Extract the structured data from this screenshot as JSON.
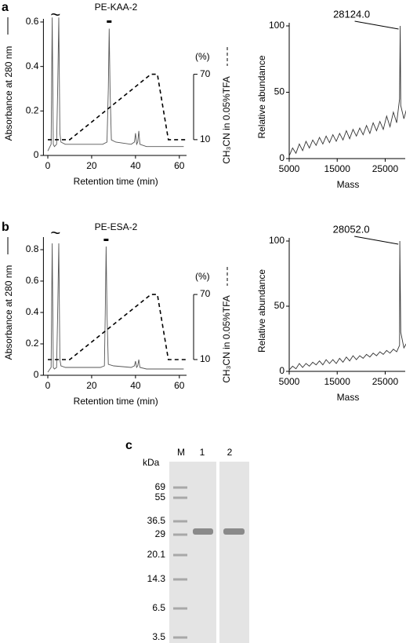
{
  "chart_data": [
    {
      "type": "line",
      "panel": "a",
      "title": "PE-KAA-2",
      "xlabel": "Retention time (min)",
      "ylabel": "Absorbance at 280 nm",
      "y2label": "CH₃CN in 0.05%TFA",
      "y2unit": "(%)",
      "break_mark": "~",
      "xlim": [
        -2,
        64
      ],
      "xticks": [
        0,
        20,
        40,
        60
      ],
      "ylim": [
        0,
        0.6
      ],
      "yticks": [
        0,
        0.2,
        0.4,
        0.6
      ],
      "y2lim": [
        -4.5,
        118
      ],
      "y2ticks": [
        10,
        70
      ],
      "series": [
        {
          "color": "#555555",
          "x": [
            0,
            1.5,
            2,
            2.5,
            3,
            4,
            4.5,
            5,
            5.5,
            6,
            8,
            15,
            25,
            27,
            27.6,
            28,
            28.4,
            29,
            31,
            38,
            39.5,
            40,
            40.5,
            41,
            41.5,
            42,
            45,
            55,
            62
          ],
          "values": [
            0.02,
            0.05,
            0.62,
            0.05,
            0.04,
            0.05,
            0.3,
            0.62,
            0.1,
            0.06,
            0.05,
            0.05,
            0.05,
            0.06,
            0.3,
            0.57,
            0.3,
            0.07,
            0.06,
            0.05,
            0.06,
            0.1,
            0.05,
            0.06,
            0.11,
            0.05,
            0.04,
            0.04,
            0.04
          ]
        },
        {
          "color": "#000000",
          "dash": true,
          "axis": "y2",
          "x": [
            0,
            10,
            47,
            50,
            55,
            63
          ],
          "values": [
            10,
            10,
            70,
            70,
            10,
            10
          ]
        }
      ]
    },
    {
      "type": "line",
      "ylabel": "Relative abundance",
      "xlabel": "Mass",
      "annotation": "28124.0",
      "xlim": [
        5000,
        29500
      ],
      "xticks": [
        5000,
        15000,
        25000
      ],
      "ylim": [
        0,
        100
      ],
      "yticks": [
        0,
        50,
        100
      ],
      "series": [
        {
          "color": "#333333",
          "x": [
            5000,
            5700,
            6400,
            7100,
            7800,
            8500,
            9200,
            9900,
            10600,
            11300,
            12000,
            12700,
            13400,
            14100,
            14800,
            15500,
            16200,
            16900,
            17600,
            18300,
            19000,
            19700,
            20400,
            21100,
            21800,
            22500,
            23200,
            23900,
            24600,
            25300,
            26000,
            26700,
            27400,
            28000,
            28124,
            28250,
            28900,
            29500
          ],
          "values": [
            2,
            8,
            4,
            11,
            6,
            13,
            8,
            14,
            10,
            16,
            11,
            17,
            12,
            18,
            13,
            19,
            14,
            21,
            15,
            22,
            17,
            23,
            18,
            25,
            19,
            27,
            21,
            28,
            22,
            32,
            24,
            35,
            27,
            45,
            100,
            40,
            30,
            38
          ]
        }
      ]
    },
    {
      "type": "line",
      "panel": "b",
      "title": "PE-ESA-2",
      "xlabel": "Retention time (min)",
      "ylabel": "Absorbance at 280 nm",
      "y2label": "CH₃CN in 0.05%TFA",
      "y2unit": "(%)",
      "break_mark": "~",
      "xlim": [
        -2,
        64
      ],
      "xticks": [
        0,
        20,
        40,
        60
      ],
      "ylim": [
        0,
        0.86
      ],
      "yticks": [
        0,
        0.2,
        0.4,
        0.6,
        0.8
      ],
      "y2lim": [
        -4.5,
        120
      ],
      "y2ticks": [
        10,
        70
      ],
      "series": [
        {
          "color": "#555555",
          "x": [
            0,
            1.5,
            2,
            2.5,
            3,
            4,
            4.5,
            5,
            5.5,
            6,
            8,
            15,
            24,
            25.8,
            26.2,
            26.6,
            27,
            27.6,
            30,
            38,
            39.5,
            40,
            40.5,
            41,
            41.5,
            42,
            45,
            55,
            62
          ],
          "values": [
            0.02,
            0.05,
            0.84,
            0.05,
            0.04,
            0.05,
            0.4,
            0.84,
            0.1,
            0.06,
            0.05,
            0.05,
            0.05,
            0.06,
            0.4,
            0.82,
            0.4,
            0.07,
            0.06,
            0.05,
            0.06,
            0.09,
            0.05,
            0.06,
            0.1,
            0.05,
            0.04,
            0.04,
            0.04
          ]
        },
        {
          "color": "#000000",
          "dash": true,
          "axis": "y2",
          "x": [
            0,
            10,
            47,
            50,
            55,
            63
          ],
          "values": [
            10,
            10,
            70,
            70,
            10,
            10
          ]
        }
      ]
    },
    {
      "type": "line",
      "ylabel": "Relative abundance",
      "xlabel": "Mass",
      "annotation": "28052.0",
      "xlim": [
        5000,
        29500
      ],
      "xticks": [
        5000,
        15000,
        25000
      ],
      "ylim": [
        0,
        100
      ],
      "yticks": [
        0,
        50,
        100
      ],
      "series": [
        {
          "color": "#333333",
          "x": [
            5000,
            5700,
            6400,
            7100,
            7800,
            8500,
            9200,
            9900,
            10600,
            11300,
            12000,
            12700,
            13400,
            14100,
            14800,
            15500,
            16200,
            16900,
            17600,
            18300,
            19000,
            19700,
            20400,
            21100,
            21800,
            22500,
            23200,
            23900,
            24600,
            25300,
            26000,
            26700,
            27400,
            28000,
            28052,
            28250,
            28900,
            29500
          ],
          "values": [
            1,
            4,
            2,
            6,
            3,
            6,
            4,
            7,
            5,
            8,
            5,
            9,
            6,
            9,
            6,
            10,
            7,
            11,
            8,
            12,
            9,
            12,
            10,
            13,
            11,
            14,
            12,
            15,
            13,
            16,
            14,
            17,
            15,
            20,
            100,
            30,
            18,
            22
          ]
        }
      ]
    }
  ],
  "gel": {
    "panel": "c",
    "unit": "kDa",
    "lanes": [
      "M",
      "1",
      "2"
    ],
    "markers": [
      "69",
      "55",
      "36.5",
      "29",
      "20.1",
      "14.3",
      "6.5",
      "3.5"
    ]
  }
}
